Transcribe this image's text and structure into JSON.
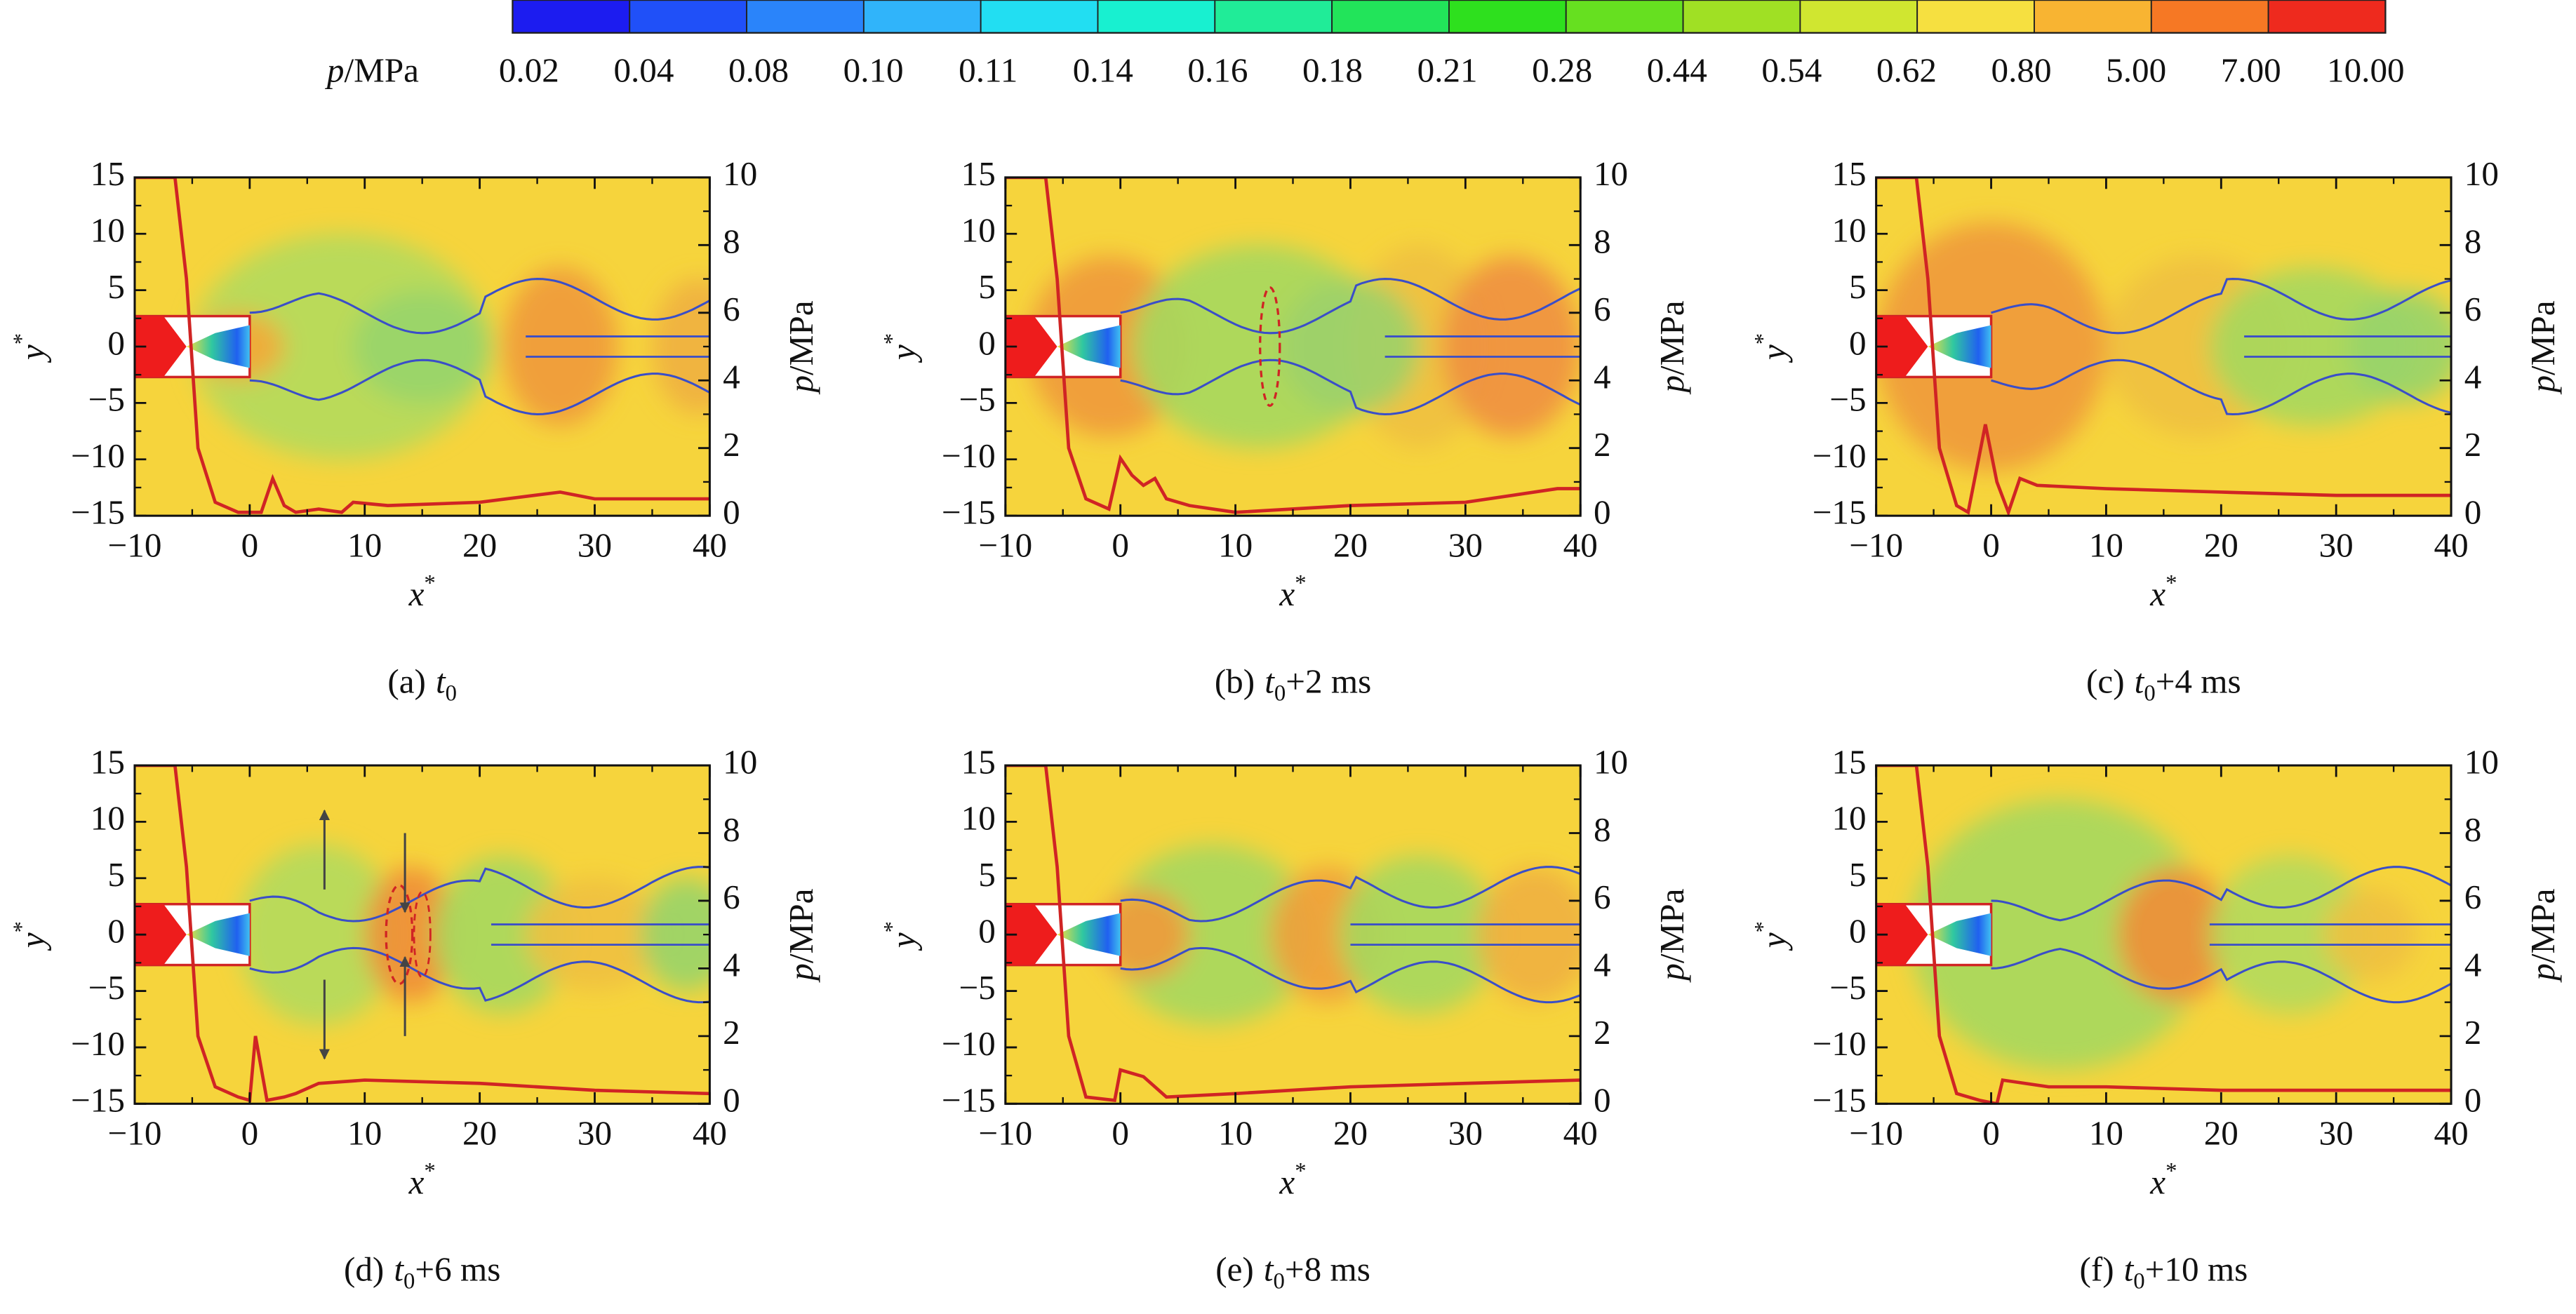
{
  "colorbar": {
    "label_var": "p",
    "label_unit": "/MPa",
    "levels": [
      0.02,
      0.04,
      0.08,
      {
        "value": 0.1,
        "label": "0.10"
      },
      0.11,
      0.14,
      0.16,
      0.18,
      0.21,
      0.28,
      0.44,
      0.54,
      0.62,
      {
        "value": 0.8,
        "label": "0.80"
      },
      {
        "value": 5,
        "label": "5.00"
      },
      {
        "value": 7,
        "label": "7.00"
      },
      {
        "value": 10,
        "label": "10.00"
      }
    ],
    "colors": [
      "#1c1cf0",
      "#2050f8",
      "#2a84fa",
      "#30b4fa",
      "#22def2",
      "#18f0d0",
      "#20ec98",
      "#22e45a",
      "#2ee01e",
      "#66e020",
      "#a0e024",
      "#d0e630",
      "#f6e040",
      "#f8b432",
      "#f67824",
      "#ee2a1e"
    ]
  },
  "chart_data": [
    {
      "type": "contour",
      "caption_prefix": "(a)",
      "caption_var": "t",
      "caption_sub": "0",
      "xlabel": "x",
      "xlabel_sup": "*",
      "ylabel": "y",
      "ylabel_sup": "*",
      "y2label_var": "p",
      "y2label_unit": "/MPa",
      "xlim": [
        -10,
        40
      ],
      "xticks": [
        {
          "value": -10,
          "label": "−10"
        },
        0,
        10,
        20,
        30,
        40
      ],
      "ylim": [
        -15,
        15
      ],
      "yticks": [
        {
          "value": -15,
          "label": "−15"
        },
        {
          "value": -10,
          "label": "−10"
        },
        {
          "value": -5,
          "label": "−5"
        },
        0,
        5,
        10,
        15
      ],
      "y2lim": [
        0,
        10
      ],
      "y2ticks": [
        0,
        2,
        4,
        6,
        8,
        10
      ],
      "series": [
        {
          "color": "#d02424",
          "axis": "y2",
          "x": [
            -10,
            -6.5,
            -5.5,
            -4.5,
            -3,
            -1,
            1,
            2,
            3,
            4,
            6,
            8,
            9,
            12,
            20,
            27,
            30,
            40
          ],
          "values": [
            10,
            10,
            7,
            2,
            0.4,
            0.1,
            0.1,
            1.1,
            0.3,
            0.1,
            0.2,
            0.1,
            0.4,
            0.3,
            0.4,
            0.7,
            0.5,
            0.5
          ]
        }
      ]
    },
    {
      "type": "contour",
      "caption_prefix": "(b)",
      "caption_var": "t",
      "caption_sub": "0",
      "caption_suffix": "+2 ms",
      "xlabel": "x",
      "xlabel_sup": "*",
      "ylabel": "y",
      "ylabel_sup": "*",
      "y2label_var": "p",
      "y2label_unit": "/MPa",
      "xlim": [
        -10,
        40
      ],
      "xticks": [
        {
          "value": -10,
          "label": "−10"
        },
        0,
        10,
        20,
        30,
        40
      ],
      "ylim": [
        -15,
        15
      ],
      "yticks": [
        {
          "value": -15,
          "label": "−15"
        },
        {
          "value": -10,
          "label": "−10"
        },
        {
          "value": -5,
          "label": "−5"
        },
        0,
        5,
        10,
        15
      ],
      "y2lim": [
        0,
        10
      ],
      "y2ticks": [
        0,
        2,
        4,
        6,
        8,
        10
      ],
      "series": [
        {
          "color": "#d02424",
          "axis": "y2",
          "x": [
            -10,
            -6.5,
            -5.5,
            -4.5,
            -3,
            -1,
            0,
            1,
            2,
            3,
            4,
            6,
            10,
            20,
            30,
            38,
            40
          ],
          "values": [
            10,
            10,
            7,
            2,
            0.5,
            0.2,
            1.7,
            1.2,
            0.9,
            1.1,
            0.5,
            0.3,
            0.1,
            0.3,
            0.4,
            0.8,
            0.8
          ]
        }
      ]
    },
    {
      "type": "contour",
      "caption_prefix": "(c)",
      "caption_var": "t",
      "caption_sub": "0",
      "caption_suffix": "+4 ms",
      "xlabel": "x",
      "xlabel_sup": "*",
      "ylabel": "y",
      "ylabel_sup": "*",
      "y2label_var": "p",
      "y2label_unit": "/MPa",
      "xlim": [
        -10,
        40
      ],
      "xticks": [
        {
          "value": -10,
          "label": "−10"
        },
        0,
        10,
        20,
        30,
        40
      ],
      "ylim": [
        -15,
        15
      ],
      "yticks": [
        {
          "value": -15,
          "label": "−15"
        },
        {
          "value": -10,
          "label": "−10"
        },
        {
          "value": -5,
          "label": "−5"
        },
        0,
        5,
        10,
        15
      ],
      "y2lim": [
        0,
        10
      ],
      "y2ticks": [
        0,
        2,
        4,
        6,
        8,
        10
      ],
      "series": [
        {
          "color": "#d02424",
          "axis": "y2",
          "x": [
            -10,
            -6.5,
            -5.5,
            -4.5,
            -3,
            -2,
            -0.5,
            0.5,
            1.5,
            2.5,
            4,
            10,
            20,
            30,
            40
          ],
          "values": [
            10,
            10,
            7,
            2,
            0.3,
            0.1,
            2.7,
            1.0,
            0.1,
            1.1,
            0.9,
            0.8,
            0.7,
            0.6,
            0.6
          ]
        }
      ]
    },
    {
      "type": "contour",
      "caption_prefix": "(d)",
      "caption_var": "t",
      "caption_sub": "0",
      "caption_suffix": "+6 ms",
      "xlabel": "x",
      "xlabel_sup": "*",
      "ylabel": "y",
      "ylabel_sup": "*",
      "y2label_var": "p",
      "y2label_unit": "/MPa",
      "xlim": [
        -10,
        40
      ],
      "xticks": [
        {
          "value": -10,
          "label": "−10"
        },
        0,
        10,
        20,
        30,
        40
      ],
      "ylim": [
        -15,
        15
      ],
      "yticks": [
        {
          "value": -15,
          "label": "−15"
        },
        {
          "value": -10,
          "label": "−10"
        },
        {
          "value": -5,
          "label": "−5"
        },
        0,
        5,
        10,
        15
      ],
      "y2lim": [
        0,
        10
      ],
      "y2ticks": [
        0,
        2,
        4,
        6,
        8,
        10
      ],
      "series": [
        {
          "color": "#d02424",
          "axis": "y2",
          "x": [
            -10,
            -6.5,
            -5.5,
            -4.5,
            -3,
            -1,
            0,
            0.5,
            1.5,
            3,
            4,
            6,
            10,
            20,
            30,
            40
          ],
          "values": [
            10,
            10,
            7,
            2,
            0.5,
            0.2,
            0.1,
            2.0,
            0.1,
            0.2,
            0.3,
            0.6,
            0.7,
            0.6,
            0.4,
            0.3
          ]
        }
      ]
    },
    {
      "type": "contour",
      "caption_prefix": "(e)",
      "caption_var": "t",
      "caption_sub": "0",
      "caption_suffix": "+8 ms",
      "xlabel": "x",
      "xlabel_sup": "*",
      "ylabel": "y",
      "ylabel_sup": "*",
      "y2label_var": "p",
      "y2label_unit": "/MPa",
      "xlim": [
        -10,
        40
      ],
      "xticks": [
        {
          "value": -10,
          "label": "−10"
        },
        0,
        10,
        20,
        30,
        40
      ],
      "ylim": [
        -15,
        15
      ],
      "yticks": [
        {
          "value": -15,
          "label": "−15"
        },
        {
          "value": -10,
          "label": "−10"
        },
        {
          "value": -5,
          "label": "−5"
        },
        0,
        5,
        10,
        15
      ],
      "y2lim": [
        0,
        10
      ],
      "y2ticks": [
        0,
        2,
        4,
        6,
        8,
        10
      ],
      "series": [
        {
          "color": "#d02424",
          "axis": "y2",
          "x": [
            -10,
            -6.5,
            -5.5,
            -4.5,
            -3,
            -0.5,
            0,
            2,
            4,
            10,
            20,
            30,
            40
          ],
          "values": [
            10,
            10,
            7,
            2,
            0.2,
            0.1,
            1.0,
            0.8,
            0.2,
            0.3,
            0.5,
            0.6,
            0.7
          ]
        }
      ]
    },
    {
      "type": "contour",
      "caption_prefix": "(f)",
      "caption_var": "t",
      "caption_sub": "0",
      "caption_suffix": "+10 ms",
      "xlabel": "x",
      "xlabel_sup": "*",
      "ylabel": "y",
      "ylabel_sup": "*",
      "y2label_var": "p",
      "y2label_unit": "/MPa",
      "xlim": [
        -10,
        40
      ],
      "xticks": [
        {
          "value": -10,
          "label": "−10"
        },
        0,
        10,
        20,
        30,
        40
      ],
      "ylim": [
        -15,
        15
      ],
      "yticks": [
        {
          "value": -15,
          "label": "−15"
        },
        {
          "value": -10,
          "label": "−10"
        },
        {
          "value": -5,
          "label": "−5"
        },
        0,
        5,
        10,
        15
      ],
      "y2lim": [
        0,
        10
      ],
      "y2ticks": [
        0,
        2,
        4,
        6,
        8,
        10
      ],
      "series": [
        {
          "color": "#d02424",
          "axis": "y2",
          "x": [
            -10,
            -6.5,
            -5.5,
            -4.5,
            -3,
            -1,
            0.5,
            1,
            5,
            10,
            20,
            30,
            40
          ],
          "values": [
            10,
            10,
            7,
            2,
            0.3,
            0.1,
            0.0,
            0.7,
            0.5,
            0.5,
            0.4,
            0.4,
            0.4
          ]
        }
      ]
    }
  ]
}
